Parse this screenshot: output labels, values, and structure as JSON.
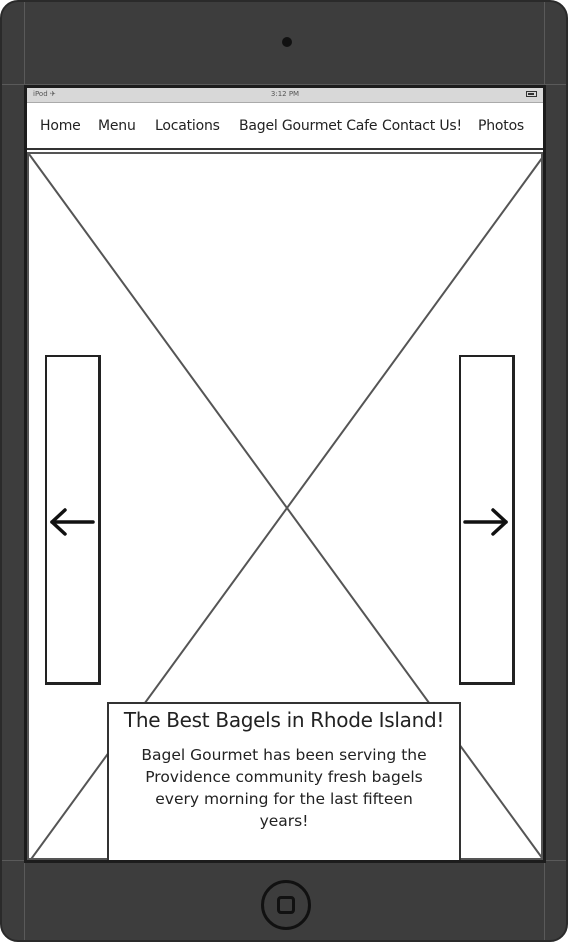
{
  "status_bar": {
    "carrier": "iPod ✈",
    "time": "3:12 PM"
  },
  "nav": {
    "items": [
      "Home",
      "Menu",
      "Locations",
      "Bagel Gourmet Cafe",
      "Contact Us!",
      "Photos"
    ]
  },
  "carousel": {
    "prev_icon": "arrow-left-icon",
    "next_icon": "arrow-right-icon"
  },
  "caption": {
    "title": "The Best Bagels in Rhode Island!",
    "body": "Bagel Gourmet has been serving the Providence community fresh bagels every morning for the last fifteen years!"
  },
  "device": {
    "home_icon": "home-button-icon"
  },
  "colors": {
    "device_body": "#3d3d3d",
    "screen_bg": "#ffffff",
    "stroke": "#222222"
  }
}
